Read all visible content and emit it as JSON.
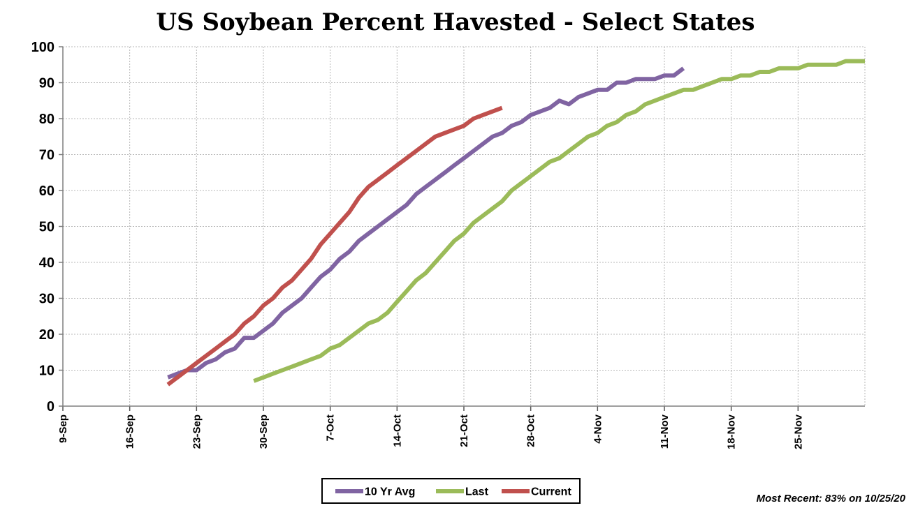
{
  "chart_data": {
    "type": "line",
    "title": "US Soybean Percent Havested - Select States",
    "xlabel": "",
    "ylabel": "",
    "ylim": [
      0,
      100
    ],
    "xlim": [
      "2020-09-09",
      "2020-12-02"
    ],
    "y_ticks": [
      0,
      10,
      20,
      30,
      40,
      50,
      60,
      70,
      80,
      90,
      100
    ],
    "x_tick_labels": [
      "9-Sep",
      "16-Sep",
      "23-Sep",
      "30-Sep",
      "7-Oct",
      "14-Oct",
      "21-Oct",
      "28-Oct",
      "4-Nov",
      "11-Nov",
      "18-Nov",
      "25-Nov"
    ],
    "x_tick_dates": [
      "2020-09-09",
      "2020-09-16",
      "2020-09-23",
      "2020-09-30",
      "2020-10-07",
      "2020-10-14",
      "2020-10-21",
      "2020-10-28",
      "2020-11-04",
      "2020-11-11",
      "2020-11-18",
      "2020-11-25"
    ],
    "grid": true,
    "legend_position": "bottom-center",
    "series": [
      {
        "name": "10 Yr Avg",
        "color": "#8064A2",
        "x": [
          "2020-09-20",
          "2020-09-21",
          "2020-09-22",
          "2020-09-23",
          "2020-09-24",
          "2020-09-25",
          "2020-09-26",
          "2020-09-27",
          "2020-09-28",
          "2020-09-29",
          "2020-09-30",
          "2020-10-01",
          "2020-10-02",
          "2020-10-03",
          "2020-10-04",
          "2020-10-05",
          "2020-10-06",
          "2020-10-07",
          "2020-10-08",
          "2020-10-09",
          "2020-10-10",
          "2020-10-11",
          "2020-10-12",
          "2020-10-13",
          "2020-10-14",
          "2020-10-15",
          "2020-10-16",
          "2020-10-17",
          "2020-10-18",
          "2020-10-19",
          "2020-10-20",
          "2020-10-21",
          "2020-10-22",
          "2020-10-23",
          "2020-10-24",
          "2020-10-25",
          "2020-10-26",
          "2020-10-27",
          "2020-10-28",
          "2020-10-29",
          "2020-10-30",
          "2020-10-31",
          "2020-11-01",
          "2020-11-02",
          "2020-11-03",
          "2020-11-04",
          "2020-11-05",
          "2020-11-06",
          "2020-11-07",
          "2020-11-08",
          "2020-11-09",
          "2020-11-10",
          "2020-11-11",
          "2020-11-12",
          "2020-11-13"
        ],
        "values": [
          8,
          9,
          10,
          10,
          12,
          13,
          15,
          16,
          19,
          19,
          21,
          23,
          26,
          28,
          30,
          33,
          36,
          38,
          41,
          43,
          46,
          48,
          50,
          52,
          54,
          56,
          59,
          61,
          63,
          65,
          67,
          69,
          71,
          73,
          75,
          76,
          78,
          79,
          81,
          82,
          83,
          85,
          84,
          86,
          87,
          88,
          88,
          90,
          90,
          91,
          91,
          91,
          92,
          92,
          94
        ]
      },
      {
        "name": "Last",
        "color": "#9BBB59",
        "x": [
          "2020-09-29",
          "2020-09-30",
          "2020-10-01",
          "2020-10-02",
          "2020-10-03",
          "2020-10-04",
          "2020-10-05",
          "2020-10-06",
          "2020-10-07",
          "2020-10-08",
          "2020-10-09",
          "2020-10-10",
          "2020-10-11",
          "2020-10-12",
          "2020-10-13",
          "2020-10-14",
          "2020-10-15",
          "2020-10-16",
          "2020-10-17",
          "2020-10-18",
          "2020-10-19",
          "2020-10-20",
          "2020-10-21",
          "2020-10-22",
          "2020-10-23",
          "2020-10-24",
          "2020-10-25",
          "2020-10-26",
          "2020-10-27",
          "2020-10-28",
          "2020-10-29",
          "2020-10-30",
          "2020-10-31",
          "2020-11-01",
          "2020-11-02",
          "2020-11-03",
          "2020-11-04",
          "2020-11-05",
          "2020-11-06",
          "2020-11-07",
          "2020-11-08",
          "2020-11-09",
          "2020-11-10",
          "2020-11-11",
          "2020-11-12",
          "2020-11-13",
          "2020-11-14",
          "2020-11-15",
          "2020-11-16",
          "2020-11-17",
          "2020-11-18",
          "2020-11-19",
          "2020-11-20",
          "2020-11-21",
          "2020-11-22",
          "2020-11-23",
          "2020-11-24",
          "2020-11-25",
          "2020-11-26",
          "2020-11-27",
          "2020-11-28",
          "2020-11-29",
          "2020-11-30",
          "2020-12-01",
          "2020-12-02"
        ],
        "values": [
          7,
          8,
          9,
          10,
          11,
          12,
          13,
          14,
          16,
          17,
          19,
          21,
          23,
          24,
          26,
          29,
          32,
          35,
          37,
          40,
          43,
          46,
          48,
          51,
          53,
          55,
          57,
          60,
          62,
          64,
          66,
          68,
          69,
          71,
          73,
          75,
          76,
          78,
          79,
          81,
          82,
          84,
          85,
          86,
          87,
          88,
          88,
          89,
          90,
          91,
          91,
          92,
          92,
          93,
          93,
          94,
          94,
          94,
          95,
          95,
          95,
          95,
          96,
          96,
          96
        ]
      },
      {
        "name": "Current",
        "color": "#C0504D",
        "x": [
          "2020-09-20",
          "2020-09-21",
          "2020-09-22",
          "2020-09-23",
          "2020-09-24",
          "2020-09-25",
          "2020-09-26",
          "2020-09-27",
          "2020-09-28",
          "2020-09-29",
          "2020-09-30",
          "2020-10-01",
          "2020-10-02",
          "2020-10-03",
          "2020-10-04",
          "2020-10-05",
          "2020-10-06",
          "2020-10-07",
          "2020-10-08",
          "2020-10-09",
          "2020-10-10",
          "2020-10-11",
          "2020-10-12",
          "2020-10-13",
          "2020-10-14",
          "2020-10-15",
          "2020-10-16",
          "2020-10-17",
          "2020-10-18",
          "2020-10-19",
          "2020-10-20",
          "2020-10-21",
          "2020-10-22",
          "2020-10-23",
          "2020-10-24",
          "2020-10-25"
        ],
        "values": [
          6,
          8,
          10,
          12,
          14,
          16,
          18,
          20,
          23,
          25,
          28,
          30,
          33,
          35,
          38,
          41,
          45,
          48,
          51,
          54,
          58,
          61,
          63,
          65,
          67,
          69,
          71,
          73,
          75,
          76,
          77,
          78,
          80,
          81,
          82,
          83
        ]
      }
    ],
    "annotation": "Most Recent: 83% on 10/25/20"
  }
}
